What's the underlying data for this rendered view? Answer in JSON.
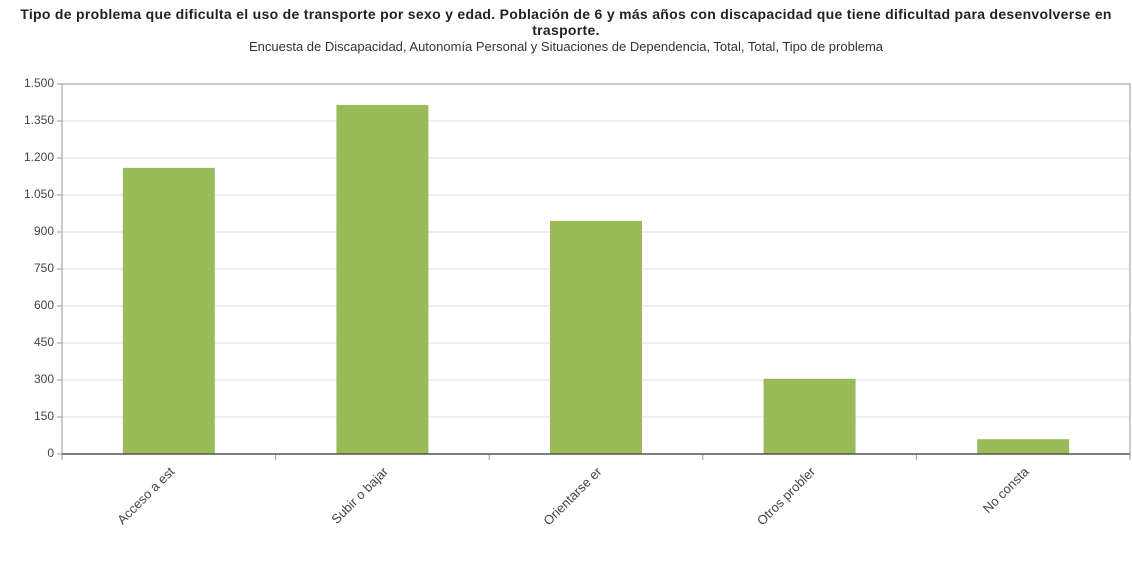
{
  "chart_data": {
    "type": "bar",
    "title": "Tipo de problema que dificulta el uso de transporte por sexo y edad. Población de 6 y más años con discapacidad que tiene dificultad para desenvolverse en trasporte.",
    "subtitle": "Encuesta de Discapacidad, Autonomía Personal y Situaciones de Dependencia, Total, Total, Tipo de problema",
    "categories": [
      "Acceso a est",
      "Subir o bajar",
      "Orientarse er",
      "Otros probler",
      "No consta"
    ],
    "values": [
      1160,
      1415,
      945,
      305,
      60
    ],
    "color": "#9bbb59",
    "ylim": [
      0,
      1500
    ],
    "yticks": [
      0,
      150,
      300,
      450,
      600,
      750,
      900,
      {
        "value": 1050,
        "label": "1.050"
      },
      {
        "value": 1200,
        "label": "1.200"
      },
      {
        "value": 1350,
        "label": "1.350"
      },
      {
        "value": 1500,
        "label": "1.500"
      }
    ],
    "grid": true
  }
}
